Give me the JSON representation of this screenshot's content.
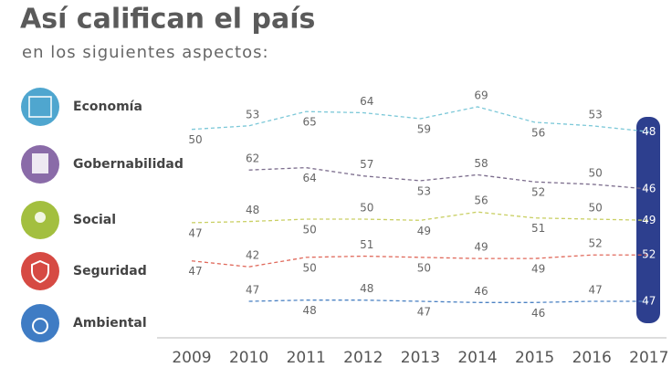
{
  "chart_data": {
    "type": "line",
    "title": "Así califican el país",
    "subtitle": "en los siguientes aspectos:",
    "categories": [
      "2009",
      "2010",
      "2011",
      "2012",
      "2013",
      "2014",
      "2015",
      "2016",
      "2017"
    ],
    "series": [
      {
        "name": "Economía",
        "color": "#7cc8d8",
        "values": [
          50,
          53,
          65,
          64,
          59,
          69,
          56,
          53,
          48
        ]
      },
      {
        "name": "Gobernabilidad",
        "color": "#7b6c8c",
        "values": [
          null,
          62,
          64,
          57,
          53,
          58,
          52,
          50,
          46
        ]
      },
      {
        "name": "Social",
        "color": "#c9cf63",
        "values": [
          47,
          48,
          50,
          50,
          49,
          56,
          51,
          50,
          49
        ]
      },
      {
        "name": "Seguridad",
        "color": "#e06a5c",
        "values": [
          47,
          42,
          50,
          51,
          50,
          49,
          49,
          52,
          52
        ]
      },
      {
        "name": "Ambiental",
        "color": "#4c82c3",
        "values": [
          null,
          47,
          48,
          48,
          47,
          46,
          46,
          47,
          47
        ]
      }
    ]
  }
}
